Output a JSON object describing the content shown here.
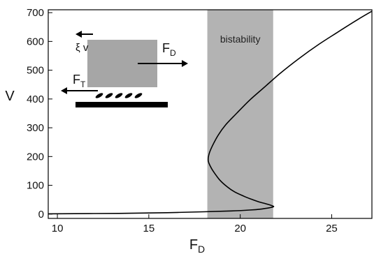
{
  "chart_data": {
    "type": "line",
    "xlabel": "F",
    "xlabel_sub": "D",
    "ylabel": "V",
    "xlim": [
      9.5,
      27.2
    ],
    "ylim": [
      -15,
      710
    ],
    "x_ticks": [
      10,
      15,
      20,
      25
    ],
    "y_ticks": [
      0,
      100,
      200,
      300,
      400,
      500,
      600,
      700
    ],
    "grid": false,
    "series": [
      {
        "points": [
          [
            9.5,
            1
          ],
          [
            12,
            2
          ],
          [
            14,
            3
          ],
          [
            16,
            5
          ],
          [
            18,
            8
          ],
          [
            19.5,
            11
          ],
          [
            20.5,
            14
          ],
          [
            21.2,
            18
          ],
          [
            21.8,
            25
          ],
          [
            21.7,
            30
          ],
          [
            21.4,
            36
          ],
          [
            21.0,
            43
          ],
          [
            20.6,
            52
          ],
          [
            20.2,
            62
          ],
          [
            19.7,
            77
          ],
          [
            19.3,
            94
          ],
          [
            18.9,
            117
          ],
          [
            18.6,
            142
          ],
          [
            18.4,
            162
          ],
          [
            18.25,
            185
          ],
          [
            18.3,
            210
          ],
          [
            18.5,
            240
          ],
          [
            18.8,
            275
          ],
          [
            19.2,
            310
          ],
          [
            19.8,
            350
          ],
          [
            20.5,
            395
          ],
          [
            21.3,
            440
          ],
          [
            22.2,
            490
          ],
          [
            23.2,
            540
          ],
          [
            24.3,
            590
          ],
          [
            25.4,
            635
          ],
          [
            26.4,
            675
          ],
          [
            27.2,
            705
          ]
        ]
      }
    ],
    "region": {
      "x0": 18.2,
      "x1": 21.8,
      "label": "bistability",
      "color": "#b3b3b3"
    }
  },
  "inset": {
    "friction_label": "ξ v",
    "drive_label": "F",
    "drive_sub": "D",
    "tension_label": "F",
    "tension_sub": "T",
    "block_color": "#a6a6a6"
  }
}
